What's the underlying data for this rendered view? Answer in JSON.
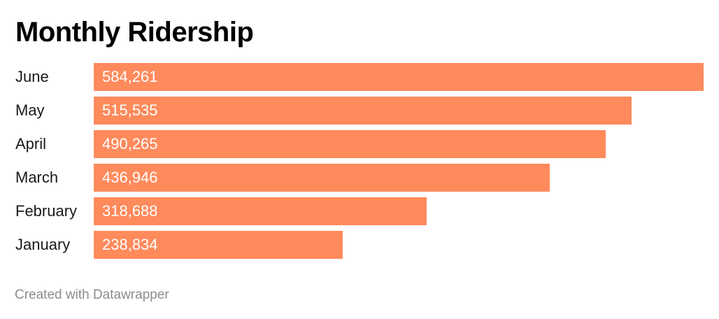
{
  "chart_data": {
    "type": "bar",
    "orientation": "horizontal",
    "title": "Monthly Ridership",
    "categories": [
      "June",
      "May",
      "April",
      "March",
      "February",
      "January"
    ],
    "values": [
      584261,
      515535,
      490265,
      436946,
      318688,
      238834
    ],
    "value_labels": [
      "584,261",
      "515,535",
      "490,265",
      "436,946",
      "318,688",
      "238,834"
    ],
    "xlabel": "",
    "ylabel": "",
    "xlim": [
      0,
      584261
    ],
    "grid": false,
    "legend": "none",
    "bar_color": "#ff8a5c"
  },
  "footer": {
    "credit": "Created with Datawrapper"
  }
}
